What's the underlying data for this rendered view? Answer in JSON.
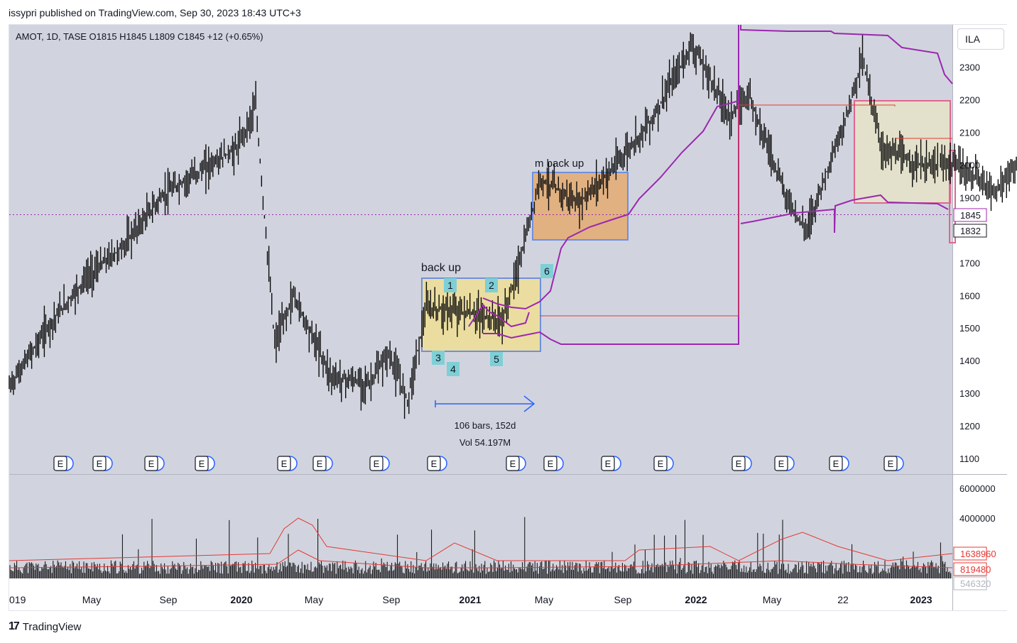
{
  "header": {
    "publish_line": "issypri published on TradingView.com, Sep 30, 2023 18:43 UTC+3"
  },
  "symbol": {
    "info": "AMOT, 1D, TASE  O1815  H1845  L1809  C1845  +12 (+0.65%)"
  },
  "currency": "ILA",
  "footer": {
    "brand": "TradingView"
  },
  "colors": {
    "background": "#d1d4de",
    "candles": "#0a0a0a",
    "purple": "#9c27b0",
    "red": "#e53935",
    "box_yellow": "#f2e08a",
    "box_orange": "#e8a35a",
    "box_gray": "#e6e3c8",
    "box_blue_border": "#6f8fe0",
    "box_pink_border": "#e06690",
    "label_teal": "#7ecfd6",
    "arrow_blue": "#2962ff"
  },
  "chart_data": {
    "type": "candlestick",
    "symbol": "AMOT",
    "interval": "1D",
    "exchange": "TASE",
    "ohlc_last": {
      "open": 1815,
      "high": 1845,
      "low": 1809,
      "close": 1845,
      "change": 12,
      "change_pct": "+0.65%"
    },
    "price_axis": {
      "ticks": [
        1100,
        1200,
        1300,
        1400,
        1500,
        1600,
        1700,
        1800,
        1900,
        2000,
        2100,
        2200,
        2300
      ],
      "ylim": [
        1065,
        2390
      ]
    },
    "time_axis": {
      "labels": [
        "019",
        "May",
        "Sep",
        "2020",
        "May",
        "Sep",
        "2021",
        "May",
        "Sep",
        "2022",
        "May",
        "22",
        "2023"
      ],
      "bold": [
        "2020",
        "2021",
        "2022",
        "2023"
      ]
    },
    "last_price_label": "1845",
    "second_price_label": "1832",
    "approx_close_series": [
      {
        "date": "2019-01",
        "close": 1320
      },
      {
        "date": "2019-03",
        "close": 1500
      },
      {
        "date": "2019-05",
        "close": 1650
      },
      {
        "date": "2019-07",
        "close": 1750
      },
      {
        "date": "2019-09",
        "close": 1900
      },
      {
        "date": "2019-11",
        "close": 1980
      },
      {
        "date": "2020-01",
        "close": 2050
      },
      {
        "date": "2020-02",
        "close": 2180
      },
      {
        "date": "2020-03",
        "close": 1450
      },
      {
        "date": "2020-04",
        "close": 1600
      },
      {
        "date": "2020-06",
        "close": 1350
      },
      {
        "date": "2020-08",
        "close": 1330
      },
      {
        "date": "2020-09",
        "close": 1420
      },
      {
        "date": "2020-10",
        "close": 1280
      },
      {
        "date": "2020-11",
        "close": 1560
      },
      {
        "date": "2021-01",
        "close": 1550
      },
      {
        "date": "2021-03",
        "close": 1520
      },
      {
        "date": "2021-04",
        "close": 1720
      },
      {
        "date": "2021-05",
        "close": 1960
      },
      {
        "date": "2021-07",
        "close": 1880
      },
      {
        "date": "2021-09",
        "close": 2000
      },
      {
        "date": "2021-11",
        "close": 2150
      },
      {
        "date": "2022-01",
        "close": 2370
      },
      {
        "date": "2022-03",
        "close": 2150
      },
      {
        "date": "2022-04",
        "close": 2220
      },
      {
        "date": "2022-06",
        "close": 1900
      },
      {
        "date": "2022-07",
        "close": 1800
      },
      {
        "date": "2022-09",
        "close": 2120
      },
      {
        "date": "2022-10",
        "close": 2330
      },
      {
        "date": "2022-11",
        "close": 2050
      },
      {
        "date": "2023-01",
        "close": 2000
      },
      {
        "date": "2023-03",
        "close": 2000
      },
      {
        "date": "2023-05",
        "close": 1920
      },
      {
        "date": "2023-07",
        "close": 2050
      },
      {
        "date": "2023-09",
        "close": 1845
      }
    ],
    "annotations": {
      "box1_label": "back up",
      "box2_label": "m back up",
      "wave_labels": [
        "1",
        "2",
        "3",
        "4",
        "5",
        "6"
      ],
      "measure_bars": "106 bars, 152d",
      "measure_vol": "Vol 54.197M",
      "earnings_marker": "E",
      "earnings_count": 16
    },
    "volume_pane": {
      "axis_ticks": [
        "6000000",
        "4000000"
      ],
      "labels": {
        "ma_long": "1638960",
        "ma_short": "819480",
        "current": "546320"
      }
    }
  }
}
